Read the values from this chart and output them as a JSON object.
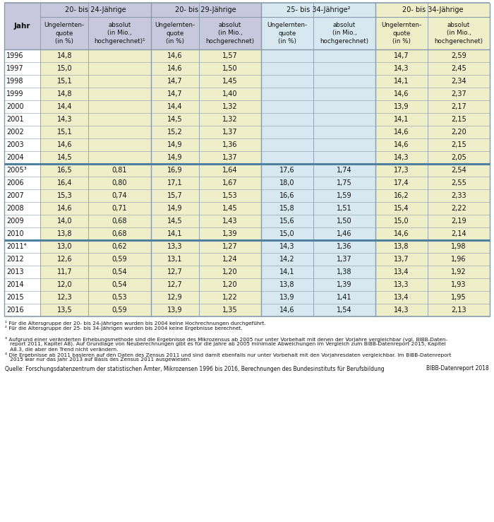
{
  "col_groups": [
    {
      "label": "20- bis 24-Jährige"
    },
    {
      "label": "20- bis 29-Jährige"
    },
    {
      "label": "25- bis 34-Jährige²"
    },
    {
      "label": "20- bis 34-Jährige"
    }
  ],
  "col_headers": [
    "Jahr",
    "Ungelernten-\nquote\n(in %)",
    "absolut\n(in Mio.,\nhochgerechnet)¹",
    "Ungelernten-\nquote\n(in %)",
    "absolut\n(in Mio.,\nhochgerechnet)",
    "Ungelernten-\nquote\n(in %)",
    "absolut\n(in Mio.,\nhochgerechnet)",
    "Ungelernten-\nquote\n(in %)",
    "absolut\n(in Mio.,\nhochgerechnet)"
  ],
  "rows": [
    [
      "1996",
      "14,8",
      "",
      "14,6",
      "1,57",
      "",
      "",
      "14,7",
      "2,59"
    ],
    [
      "1997",
      "15,0",
      "",
      "14,6",
      "1,50",
      "",
      "",
      "14,3",
      "2,45"
    ],
    [
      "1998",
      "15,1",
      "",
      "14,7",
      "1,45",
      "",
      "",
      "14,1",
      "2,34"
    ],
    [
      "1999",
      "14,8",
      "",
      "14,7",
      "1,40",
      "",
      "",
      "14,6",
      "2,37"
    ],
    [
      "2000",
      "14,4",
      "",
      "14,4",
      "1,32",
      "",
      "",
      "13,9",
      "2,17"
    ],
    [
      "2001",
      "14,3",
      "",
      "14,5",
      "1,32",
      "",
      "",
      "14,1",
      "2,15"
    ],
    [
      "2002",
      "15,1",
      "",
      "15,2",
      "1,37",
      "",
      "",
      "14,6",
      "2,20"
    ],
    [
      "2003",
      "14,6",
      "",
      "14,9",
      "1,36",
      "",
      "",
      "14,6",
      "2,15"
    ],
    [
      "2004",
      "14,5",
      "",
      "14,9",
      "1,37",
      "",
      "",
      "14,3",
      "2,05"
    ],
    [
      "2005³",
      "16,5",
      "0,81",
      "16,9",
      "1,64",
      "17,6",
      "1,74",
      "17,3",
      "2,54"
    ],
    [
      "2006",
      "16,4",
      "0,80",
      "17,1",
      "1,67",
      "18,0",
      "1,75",
      "17,4",
      "2,55"
    ],
    [
      "2007",
      "15,3",
      "0,74",
      "15,7",
      "1,53",
      "16,6",
      "1,59",
      "16,2",
      "2,33"
    ],
    [
      "2008",
      "14,6",
      "0,71",
      "14,9",
      "1,45",
      "15,8",
      "1,51",
      "15,4",
      "2,22"
    ],
    [
      "2009",
      "14,0",
      "0,68",
      "14,5",
      "1,43",
      "15,6",
      "1,50",
      "15,0",
      "2,19"
    ],
    [
      "2010",
      "13,8",
      "0,68",
      "14,1",
      "1,39",
      "15,0",
      "1,46",
      "14,6",
      "2,14"
    ],
    [
      "2011⁴",
      "13,0",
      "0,62",
      "13,3",
      "1,27",
      "14,3",
      "1,36",
      "13,8",
      "1,98"
    ],
    [
      "2012",
      "12,6",
      "0,59",
      "13,1",
      "1,24",
      "14,2",
      "1,37",
      "13,7",
      "1,96"
    ],
    [
      "2013",
      "11,7",
      "0,54",
      "12,7",
      "1,20",
      "14,1",
      "1,38",
      "13,4",
      "1,92"
    ],
    [
      "2014",
      "12,0",
      "0,54",
      "12,7",
      "1,20",
      "13,8",
      "1,39",
      "13,3",
      "1,93"
    ],
    [
      "2015",
      "12,3",
      "0,53",
      "12,9",
      "1,22",
      "13,9",
      "1,41",
      "13,4",
      "1,95"
    ],
    [
      "2016",
      "13,5",
      "0,59",
      "13,9",
      "1,35",
      "14,6",
      "1,54",
      "14,3",
      "2,13"
    ]
  ],
  "thick_border_rows": [
    8,
    14
  ],
  "footnote1": "¹ Für die Altersgruppe der 20- bis 24-Jährigen wurden bis 2004 keine Hochrechnungen durchgeführt.",
  "footnote2": "² Für die Altersgruppe der 25- bis 34-Jährigen wurden bis 2004 keine Ergebnisse berechnet.",
  "footnote3a": "³ Aufgrund einer veränderten Erhebungsmethode sind die Ergebnisse des Mikrozensus ab 2005 nur unter Vorbehalt mit denen der Vorjahre vergleichbar (vgl. BIBB-Daten-",
  "footnote3b": "   report 2011, Kapitel A8). Auf Grundlage von Neuberechnungen gibt es für die Jahre ab 2005 minimale Abweichungen im Vergleich zum BIBB-Datenreport 2015, Kapitel",
  "footnote3c": "   A8.3, die aber den Trend nicht verändern.",
  "footnote4a": "⁴ Die Ergebnisse ab 2011 basieren auf den Daten des Zensus 2011 und sind damit ebenfalls nur unter Vorbehalt mit den Vorjahresdaten vergleichbar. Im BIBB-Datenreport",
  "footnote4b": "   2015 war nur das Jahr 2013 auf Basis des Zensus 2011 ausgewiesen.",
  "source": "Quelle: Forschungsdatenzentrum der statistischen Ämter, Mikrozensen 1996 bis 2016, Berechnungen des Bundesinstituts für Berufsbildung",
  "source_right": "BIBB-Datenreport 2018",
  "header_bg": "#c8c8dc",
  "row_bg_light": "#eeeec8",
  "row_bg_blue": "#d8e8f0",
  "row_bg_green_light": "#f0f0d8",
  "border_color": "#8899aa",
  "thick_border_color": "#5080a0",
  "text_color": "#222222"
}
